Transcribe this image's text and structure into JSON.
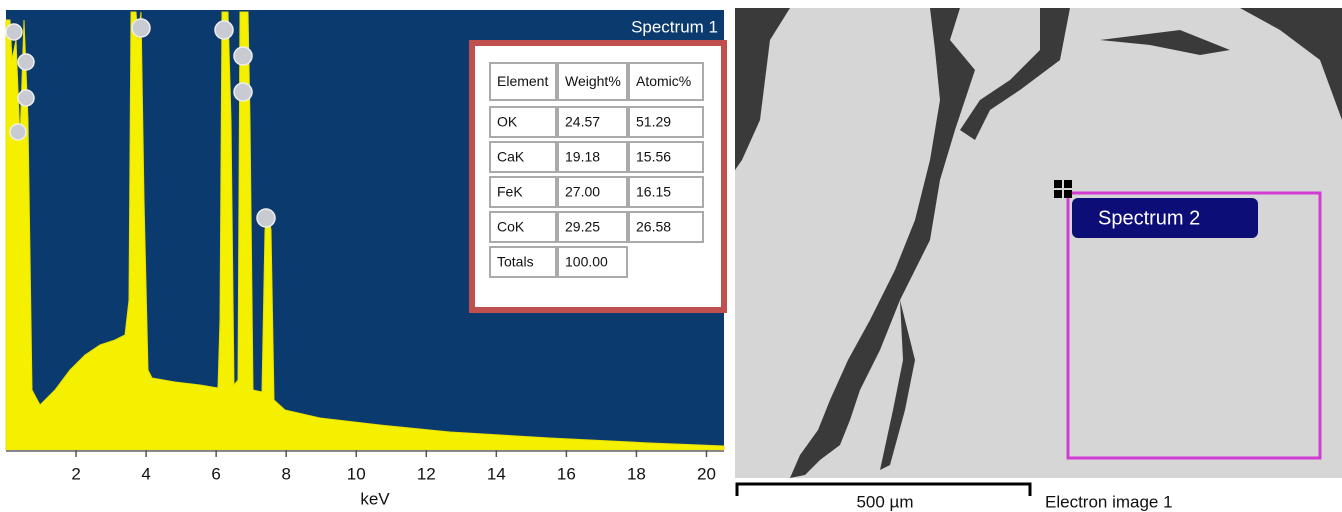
{
  "spectrum": {
    "title": "Spectrum 1",
    "x_label": "keV",
    "xlim": [
      0,
      20.5
    ],
    "xticks": [
      2,
      4,
      6,
      8,
      10,
      12,
      14,
      16,
      18,
      20
    ]
  },
  "table": {
    "header": [
      "Element",
      "Weight%",
      "Atomic%"
    ],
    "rows": [
      [
        "OK",
        "24.57",
        "51.29"
      ],
      [
        "CaK",
        "19.18",
        "15.56"
      ],
      [
        "FeK",
        "27.00",
        "16.15"
      ],
      [
        "CoK",
        "29.25",
        "26.58"
      ],
      [
        "Totals",
        "100.00"
      ]
    ]
  },
  "image": {
    "region_label": "Spectrum 2",
    "scale_bar": "500 µm",
    "caption": "Electron image 1"
  }
}
